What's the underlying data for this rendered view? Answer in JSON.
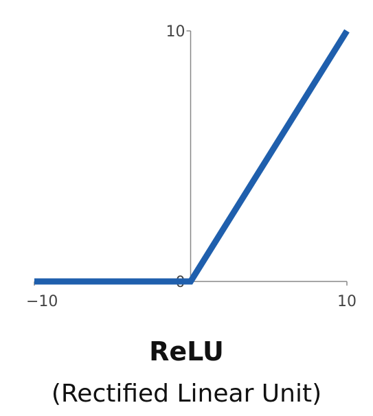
{
  "chart_data": {
    "type": "line",
    "title": "ReLU",
    "subtitle": "(Rectified Linear Unit)",
    "xlabel": "",
    "ylabel": "",
    "xlim": [
      -10,
      10
    ],
    "ylim": [
      0,
      10
    ],
    "grid": false,
    "x_ticks": [
      {
        "value": -10,
        "label": "−10"
      },
      {
        "value": 10,
        "label": "10"
      }
    ],
    "y_ticks": [
      {
        "value": 10,
        "label": "10"
      },
      {
        "value": 0,
        "label": "0"
      }
    ],
    "series": [
      {
        "x": [
          -10,
          0,
          10
        ],
        "y": [
          0,
          0,
          10
        ]
      }
    ],
    "colors": {
      "line": "#1f5fad",
      "axis": "#888888"
    }
  }
}
